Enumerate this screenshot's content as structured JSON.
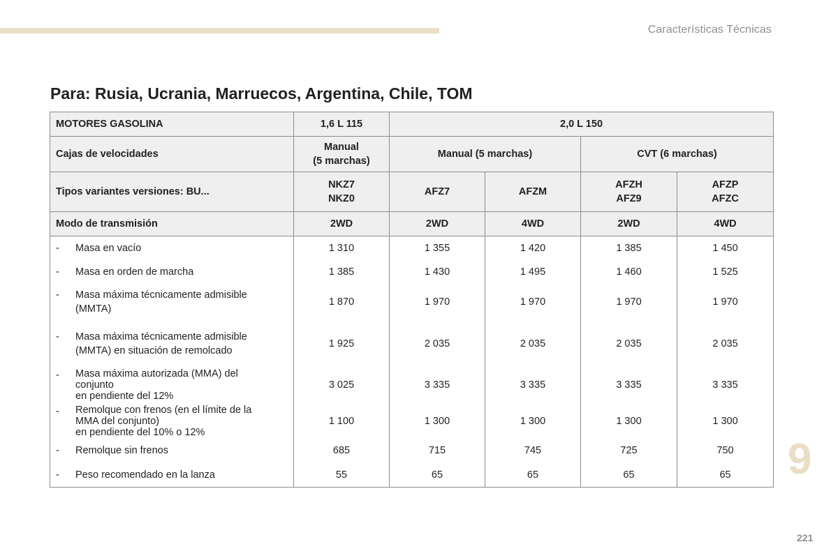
{
  "header": {
    "section": "Características Técnicas"
  },
  "title": "Para: Rusia, Ucrania, Marruecos, Argentina, Chile, TOM",
  "table": {
    "engines_label": "MOTORES GASOLINA",
    "engine_1": "1,6 L 115",
    "engine_2": "2,0 L 150",
    "gearbox_label": "Cajas de velocidades",
    "gearbox_1_line1": "Manual",
    "gearbox_1_line2": "(5 marchas)",
    "gearbox_2": "Manual (5 marchas)",
    "gearbox_3": "CVT (6 marchas)",
    "variants_label": "Tipos variantes versiones: BU...",
    "variants": [
      {
        "line1": "NKZ7",
        "line2": "NKZ0"
      },
      {
        "line1": "AFZ7",
        "line2": ""
      },
      {
        "line1": "AFZM",
        "line2": ""
      },
      {
        "line1": "AFZH",
        "line2": "AFZ9"
      },
      {
        "line1": "AFZP",
        "line2": "AFZC"
      }
    ],
    "transmission_label": "Modo de transmisión",
    "transmission": [
      "2WD",
      "2WD",
      "4WD",
      "2WD",
      "4WD"
    ],
    "rows": [
      {
        "dash": "-",
        "line1": "Masa en vacío",
        "line2": "",
        "line3": "",
        "values": [
          "1 310",
          "1 355",
          "1 420",
          "1 385",
          "1 450"
        ]
      },
      {
        "dash": "-",
        "line1": "Masa en orden de marcha",
        "line2": "",
        "line3": "",
        "values": [
          "1 385",
          "1 430",
          "1 495",
          "1 460",
          "1 525"
        ]
      },
      {
        "dash": "-",
        "line1": "Masa máxima técnicamente admisible",
        "line2": "(MMTA)",
        "line3": "",
        "values": [
          "1 870",
          "1 970",
          "1 970",
          "1 970",
          "1 970"
        ]
      },
      {
        "dash": "-",
        "line1": "Masa máxima técnicamente admisible",
        "line2": "(MMTA) en situación de remolcado",
        "line3": "",
        "values": [
          "1 925",
          "2 035",
          "2 035",
          "2 035",
          "2 035"
        ]
      },
      {
        "dash": "-",
        "line1": "Masa máxima autorizada (MMA) del",
        "line2": "conjunto",
        "line3": "en pendiente del 12%",
        "values": [
          "3 025",
          "3 335",
          "3 335",
          "3 335",
          "3 335"
        ]
      },
      {
        "dash": "-",
        "line1": "Remolque con frenos (en el límite de la",
        "line2": "MMA del conjunto)",
        "line3": "en pendiente del 10% o 12%",
        "values": [
          "1 100",
          "1 300",
          "1 300",
          "1 300",
          "1 300"
        ]
      },
      {
        "dash": "-",
        "line1": "Remolque sin frenos",
        "line2": "",
        "line3": "",
        "values": [
          "685",
          "715",
          "745",
          "725",
          "750"
        ]
      },
      {
        "dash": "-",
        "line1": "Peso recomendado en la lanza",
        "line2": "",
        "line3": "",
        "values": [
          "55",
          "65",
          "65",
          "65",
          "65"
        ]
      }
    ]
  },
  "chapter": "9",
  "page_number": "221"
}
